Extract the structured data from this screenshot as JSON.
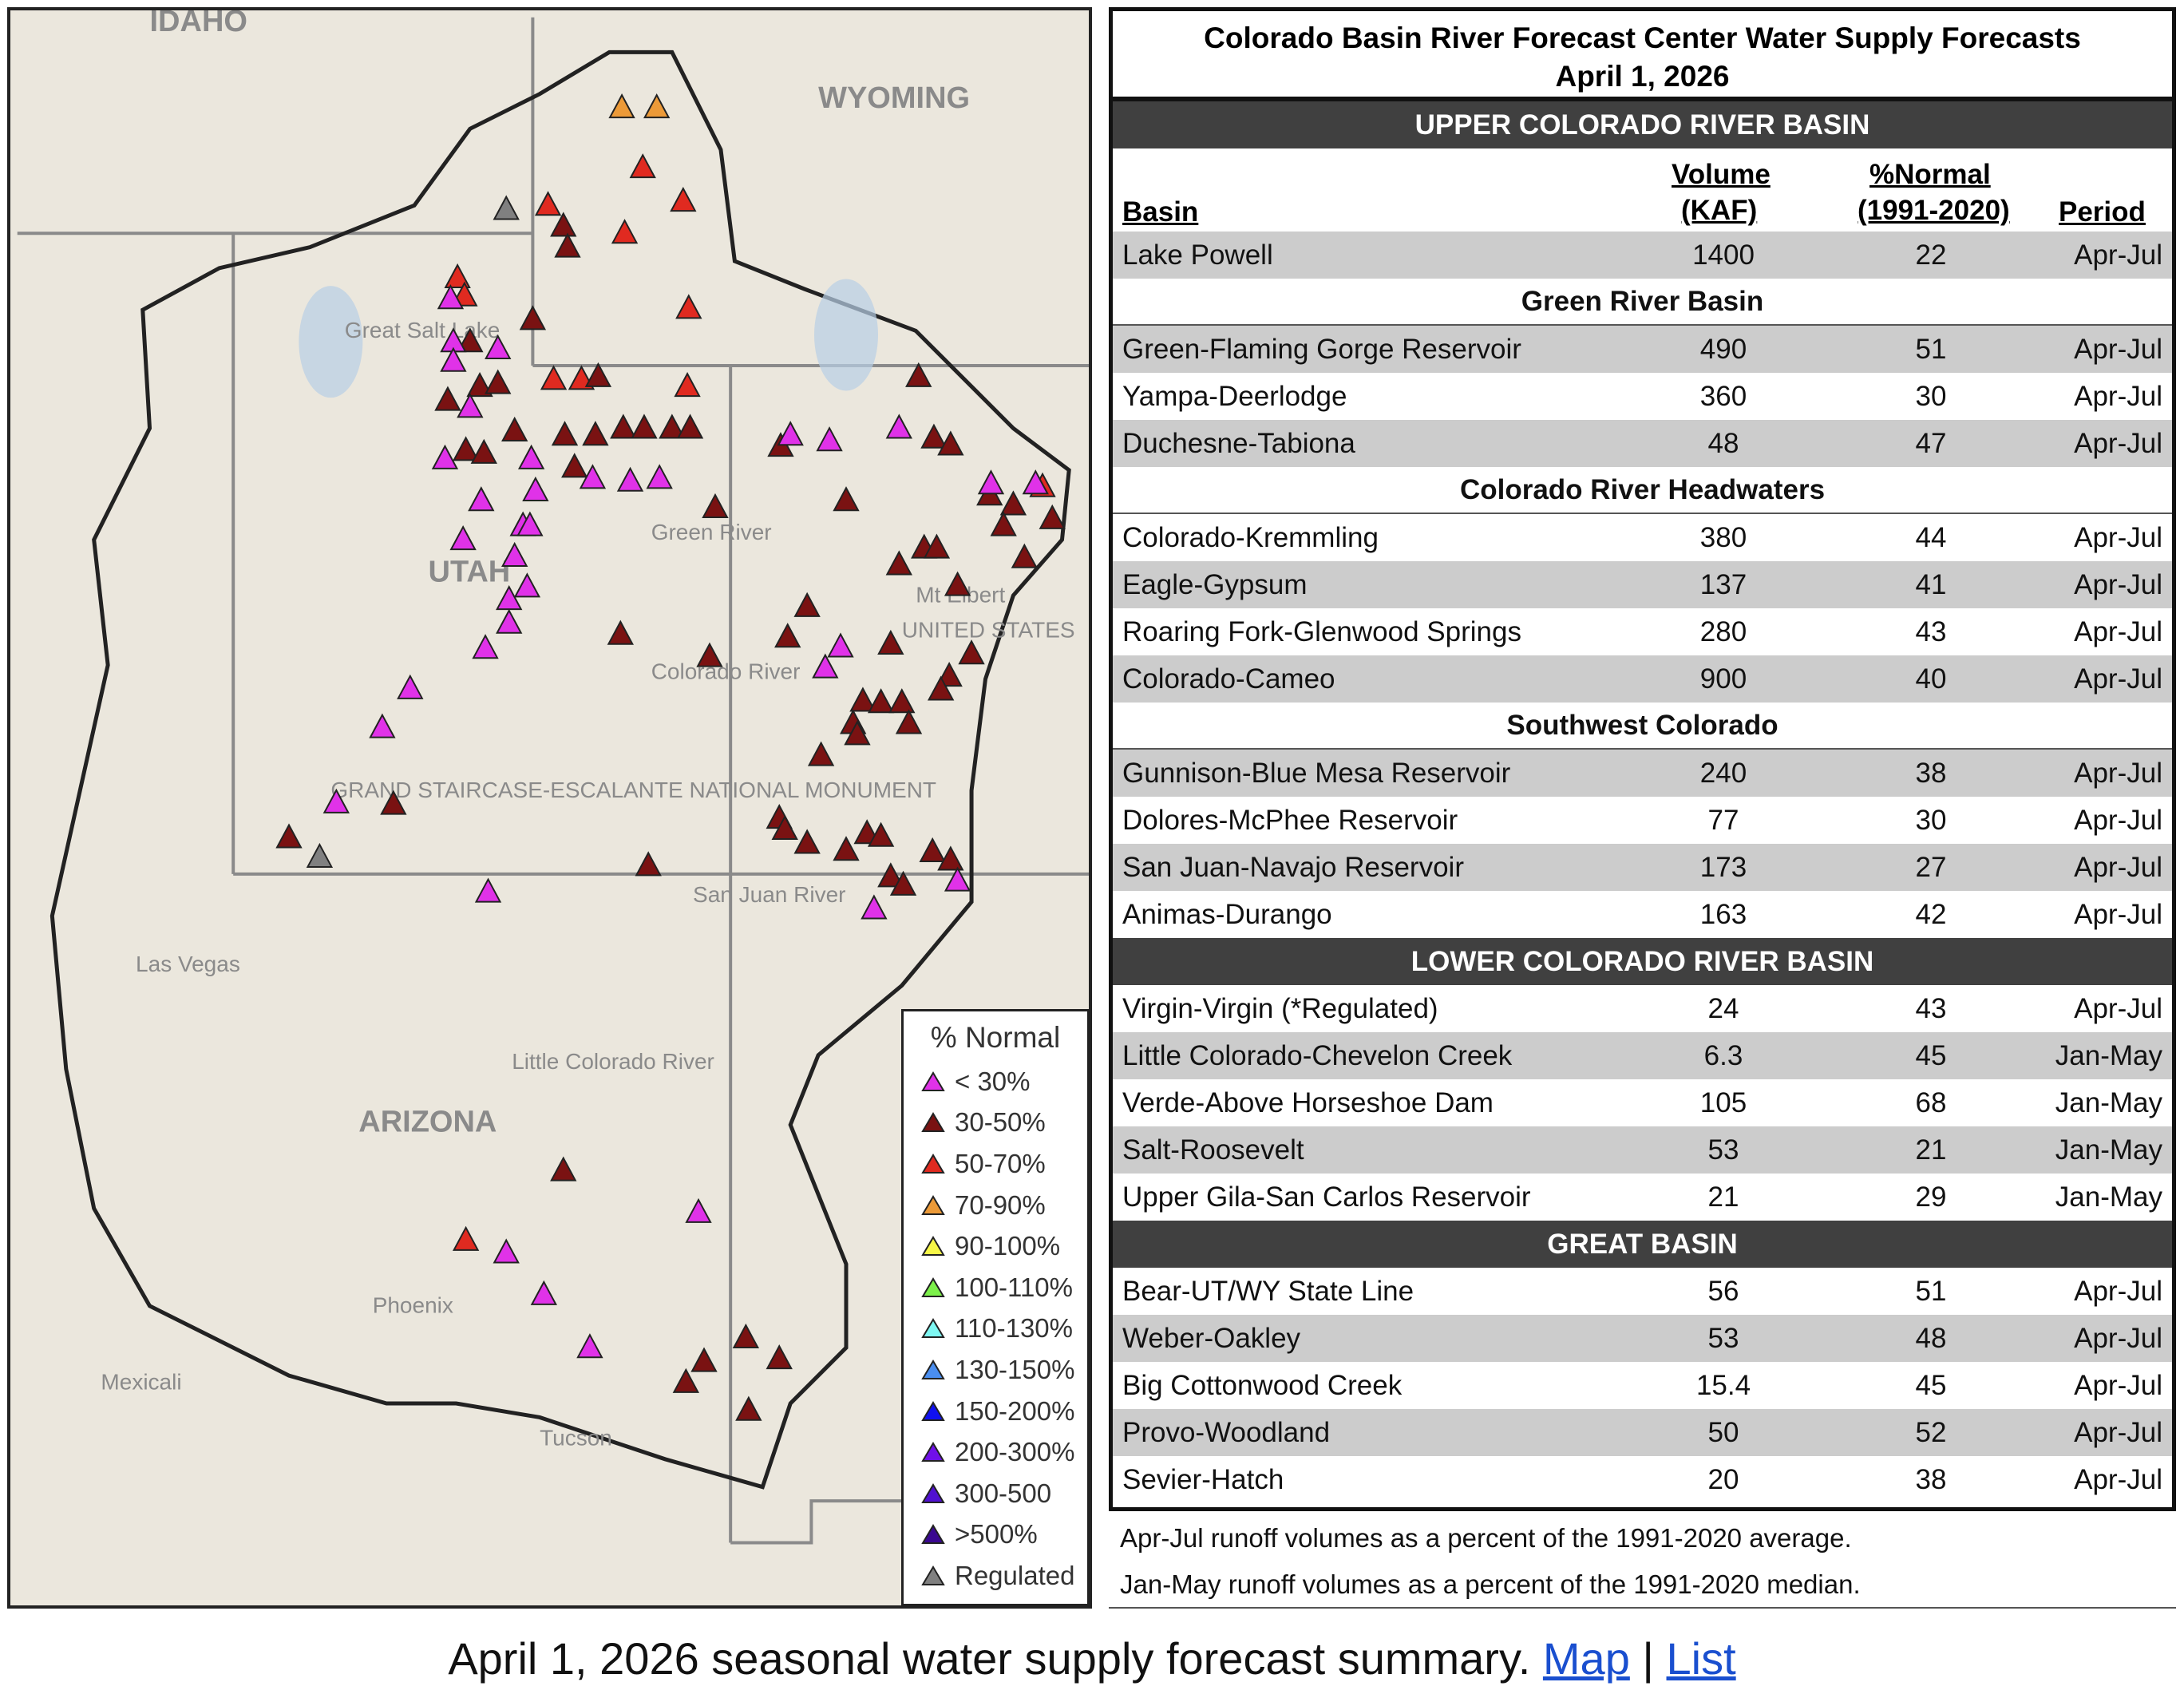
{
  "map": {
    "labels": [
      "IDAHO",
      "WYOMING",
      "UTAH",
      "ARIZONA",
      "Great Salt Lake",
      "Las Vegas",
      "Phoenix",
      "Tucson",
      "Green River",
      "Colorado River",
      "San Juan River",
      "Little Colorado River",
      "GRAND STAIRCASE-ESCALANTE NATIONAL MONUMENT",
      "Mt Elbert",
      "UNITED STATES",
      "Mexicali"
    ],
    "legend": {
      "title": "% Normal",
      "items": [
        {
          "label": "< 30%",
          "color": "#e032e8"
        },
        {
          "label": "30-50%",
          "color": "#7a1212"
        },
        {
          "label": "50-70%",
          "color": "#e02a20"
        },
        {
          "label": "70-90%",
          "color": "#ec9a38"
        },
        {
          "label": "90-100%",
          "color": "#f7f748"
        },
        {
          "label": "100-110%",
          "color": "#7cf04a"
        },
        {
          "label": "110-130%",
          "color": "#7ef7f2"
        },
        {
          "label": "130-150%",
          "color": "#4a8ef0"
        },
        {
          "label": "150-200%",
          "color": "#1010f0"
        },
        {
          "label": "200-300%",
          "color": "#7010e8"
        },
        {
          "label": "300-500",
          "color": "#5010d0"
        },
        {
          "label": ">500%",
          "color": "#3a0890"
        },
        {
          "label": "Regulated",
          "color": "#808080"
        }
      ]
    }
  },
  "table": {
    "title_line1": "Colorado Basin River Forecast Center Water Supply Forecasts",
    "title_line2": "April 1, 2026",
    "headers": {
      "basin": "Basin",
      "volume1": "Volume",
      "volume2": "(KAF)",
      "normal1": "%Normal",
      "normal2": "(1991-2020)",
      "period": "Period"
    },
    "sections": [
      {
        "type": "sec",
        "label": "UPPER COLORADO RIVER BASIN"
      },
      {
        "type": "hdr"
      },
      {
        "type": "row",
        "basin": "Lake Powell",
        "volume": "1400",
        "normal": "22",
        "period": "Apr-Jul",
        "shade": true
      },
      {
        "type": "sub",
        "label": "Green River Basin"
      },
      {
        "type": "row",
        "basin": "Green-Flaming Gorge Reservoir",
        "volume": "490",
        "normal": "51",
        "period": "Apr-Jul",
        "shade": true
      },
      {
        "type": "row",
        "basin": "Yampa-Deerlodge",
        "volume": "360",
        "normal": "30",
        "period": "Apr-Jul",
        "shade": false
      },
      {
        "type": "row",
        "basin": "Duchesne-Tabiona",
        "volume": "48",
        "normal": "47",
        "period": "Apr-Jul",
        "shade": true
      },
      {
        "type": "sub",
        "label": "Colorado River Headwaters"
      },
      {
        "type": "row",
        "basin": "Colorado-Kremmling",
        "volume": "380",
        "normal": "44",
        "period": "Apr-Jul",
        "shade": false
      },
      {
        "type": "row",
        "basin": "Eagle-Gypsum",
        "volume": "137",
        "normal": "41",
        "period": "Apr-Jul",
        "shade": true
      },
      {
        "type": "row",
        "basin": "Roaring Fork-Glenwood Springs",
        "volume": "280",
        "normal": "43",
        "period": "Apr-Jul",
        "shade": false
      },
      {
        "type": "row",
        "basin": "Colorado-Cameo",
        "volume": "900",
        "normal": "40",
        "period": "Apr-Jul",
        "shade": true
      },
      {
        "type": "sub",
        "label": "Southwest Colorado"
      },
      {
        "type": "row",
        "basin": "Gunnison-Blue Mesa Reservoir",
        "volume": "240",
        "normal": "38",
        "period": "Apr-Jul",
        "shade": true
      },
      {
        "type": "row",
        "basin": "Dolores-McPhee Reservoir",
        "volume": "77",
        "normal": "30",
        "period": "Apr-Jul",
        "shade": false
      },
      {
        "type": "row",
        "basin": "San Juan-Navajo Reservoir",
        "volume": "173",
        "normal": "27",
        "period": "Apr-Jul",
        "shade": true
      },
      {
        "type": "row",
        "basin": "Animas-Durango",
        "volume": "163",
        "normal": "42",
        "period": "Apr-Jul",
        "shade": false
      },
      {
        "type": "sec",
        "label": "LOWER COLORADO RIVER BASIN"
      },
      {
        "type": "row",
        "basin": "Virgin-Virgin (*Regulated)",
        "volume": "24",
        "normal": "43",
        "period": "Apr-Jul",
        "shade": false
      },
      {
        "type": "row",
        "basin": "Little Colorado-Chevelon Creek",
        "volume": "6.3",
        "normal": "45",
        "period": "Jan-May",
        "shade": true
      },
      {
        "type": "row",
        "basin": "Verde-Above Horseshoe Dam",
        "volume": "105",
        "normal": "68",
        "period": "Jan-May",
        "shade": false
      },
      {
        "type": "row",
        "basin": "Salt-Roosevelt",
        "volume": "53",
        "normal": "21",
        "period": "Jan-May",
        "shade": true
      },
      {
        "type": "row",
        "basin": "Upper Gila-San Carlos Reservoir",
        "volume": "21",
        "normal": "29",
        "period": "Jan-May",
        "shade": false
      },
      {
        "type": "sec",
        "label": "GREAT BASIN"
      },
      {
        "type": "row",
        "basin": "Bear-UT/WY State Line",
        "volume": "56",
        "normal": "51",
        "period": "Apr-Jul",
        "shade": false
      },
      {
        "type": "row",
        "basin": "Weber-Oakley",
        "volume": "53",
        "normal": "48",
        "period": "Apr-Jul",
        "shade": true
      },
      {
        "type": "row",
        "basin": "Big Cottonwood Creek",
        "volume": "15.4",
        "normal": "45",
        "period": "Apr-Jul",
        "shade": false
      },
      {
        "type": "row",
        "basin": "Provo-Woodland",
        "volume": "50",
        "normal": "52",
        "period": "Apr-Jul",
        "shade": true
      },
      {
        "type": "row",
        "basin": "Sevier-Hatch",
        "volume": "20",
        "normal": "38",
        "period": "Apr-Jul",
        "shade": false
      }
    ],
    "notes": [
      "Apr-Jul runoff volumes as a percent of the 1991-2020 average.",
      "Jan-May runoff volumes as a percent of the 1991-2020 median."
    ]
  },
  "caption": {
    "text": "April 1, 2026 seasonal water supply forecast summary. ",
    "link_map": "Map",
    "separator": " | ",
    "link_list": "List"
  }
}
